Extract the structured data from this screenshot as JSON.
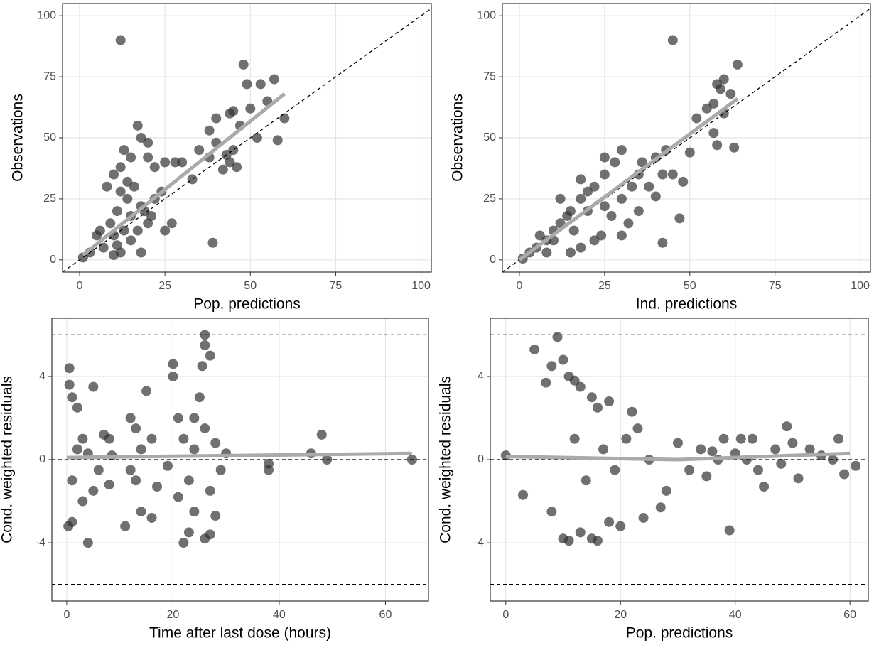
{
  "chart_data": [
    {
      "type": "scatter",
      "xlabel": "Pop. predictions",
      "ylabel": "Observations",
      "xlim": [
        -5,
        103
      ],
      "ylim": [
        -5,
        105
      ],
      "xticks": [
        0,
        25,
        50,
        75,
        100
      ],
      "yticks": [
        0,
        25,
        50,
        75,
        100
      ],
      "grid": true,
      "identity_line": true,
      "series": [
        {
          "color": "#333333",
          "x": [
            12,
            48,
            57,
            53,
            49,
            55,
            50,
            45,
            44,
            40,
            60,
            47,
            38,
            52,
            58,
            45,
            43,
            44,
            46,
            40,
            35,
            38,
            42,
            30,
            33,
            28,
            25,
            17,
            18,
            20,
            13,
            15,
            12,
            10,
            8,
            20,
            22,
            39,
            18,
            5,
            7,
            10,
            12,
            15,
            9,
            11,
            14,
            16,
            18,
            20,
            22,
            24,
            13,
            15,
            17,
            19,
            21,
            10,
            12,
            14,
            25,
            27,
            1,
            3,
            6,
            11
          ],
          "y": [
            90,
            80,
            74,
            72,
            72,
            65,
            62,
            61,
            60,
            58,
            58,
            55,
            53,
            50,
            49,
            45,
            43,
            40,
            38,
            48,
            45,
            42,
            37,
            40,
            33,
            40,
            40,
            55,
            50,
            48,
            45,
            42,
            38,
            35,
            30,
            42,
            38,
            7,
            3,
            10,
            5,
            2,
            3,
            8,
            15,
            20,
            25,
            30,
            22,
            15,
            25,
            28,
            12,
            18,
            12,
            20,
            18,
            10,
            28,
            32,
            12,
            15,
            1,
            3,
            12,
            6
          ]
        }
      ],
      "trend": {
        "color": "#aaaaaa",
        "x": [
          1,
          60
        ],
        "y": [
          2,
          68
        ]
      }
    },
    {
      "type": "scatter",
      "xlabel": "Ind. predictions",
      "ylabel": "Observations",
      "xlim": [
        -5,
        103
      ],
      "ylim": [
        -5,
        105
      ],
      "xticks": [
        0,
        25,
        50,
        75,
        100
      ],
      "yticks": [
        0,
        25,
        50,
        75,
        100
      ],
      "grid": true,
      "identity_line": true,
      "series": [
        {
          "color": "#333333",
          "x": [
            45,
            64,
            60,
            58,
            59,
            62,
            57,
            55,
            60,
            52,
            57,
            58,
            63,
            50,
            48,
            45,
            47,
            42,
            40,
            38,
            35,
            30,
            28,
            25,
            22,
            20,
            18,
            15,
            12,
            10,
            8,
            5,
            3,
            1,
            20,
            25,
            30,
            33,
            27,
            32,
            24,
            18,
            15,
            22,
            36,
            40,
            43,
            35,
            30,
            42,
            12,
            18,
            25,
            14,
            16,
            10,
            6,
            8
          ],
          "y": [
            90,
            80,
            74,
            72,
            70,
            68,
            64,
            62,
            60,
            58,
            52,
            47,
            46,
            44,
            32,
            35,
            17,
            7,
            26,
            30,
            35,
            45,
            40,
            35,
            30,
            28,
            25,
            20,
            15,
            12,
            8,
            5,
            3,
            0.5,
            20,
            22,
            25,
            30,
            18,
            15,
            10,
            5,
            3,
            8,
            40,
            42,
            45,
            20,
            10,
            35,
            25,
            33,
            42,
            18,
            12,
            8,
            10,
            3
          ]
        }
      ],
      "trend": {
        "color": "#aaaaaa",
        "x": [
          0,
          64
        ],
        "y": [
          0,
          66
        ]
      }
    },
    {
      "type": "scatter",
      "xlabel": "Time after last dose (hours)",
      "ylabel": "Cond. weighted residuals",
      "xlim": [
        -2.8,
        68.1
      ],
      "ylim": [
        -6.8,
        6.8
      ],
      "xticks": [
        0,
        20,
        40,
        60
      ],
      "yticks": [
        -4,
        0,
        4
      ],
      "grid": true,
      "hlines": [
        -6,
        0,
        6
      ],
      "series": [
        {
          "color": "#333333",
          "x": [
            0.5,
            0.5,
            1,
            0.3,
            1,
            2,
            3,
            4,
            5,
            5,
            2,
            1,
            3,
            6,
            4,
            7,
            8,
            8,
            8.5,
            11,
            12,
            13,
            14,
            15,
            16,
            14,
            12,
            16,
            17,
            13,
            20,
            20,
            21,
            22,
            23,
            24,
            25,
            26,
            26,
            27,
            25.5,
            24,
            26,
            27,
            28,
            22,
            23,
            24,
            26,
            27,
            28,
            29,
            30,
            38,
            38,
            46,
            48,
            49,
            65,
            19,
            21
          ],
          "y": [
            3.6,
            4.4,
            3,
            -3.2,
            -3,
            2.5,
            -2,
            -4,
            3.5,
            -1.5,
            0.5,
            -1,
            1,
            -0.5,
            0.3,
            1.2,
            1,
            -1.2,
            0.2,
            -3.2,
            2,
            1.5,
            -2.5,
            3.3,
            -2.8,
            0.5,
            -0.5,
            1,
            -1.3,
            -1,
            4.6,
            4,
            2,
            -4,
            -3.5,
            -2.5,
            3,
            6,
            5.5,
            5,
            4.5,
            2,
            -3.8,
            -3.6,
            -2.7,
            1,
            -1,
            0.5,
            1.5,
            -1.5,
            0.8,
            -0.5,
            0.3,
            -0.2,
            -0.5,
            0.3,
            1.2,
            0,
            0,
            -0.3,
            -1.8
          ]
        }
      ],
      "trend": {
        "color": "#aaaaaa",
        "x": [
          0,
          65
        ],
        "y": [
          0.1,
          0.3
        ]
      }
    },
    {
      "type": "scatter",
      "xlabel": "Pop. predictions",
      "ylabel": "Cond. weighted residuals",
      "xlim": [
        -2.7,
        63.2
      ],
      "ylim": [
        -6.8,
        6.8
      ],
      "xticks": [
        0,
        20,
        40,
        60
      ],
      "yticks": [
        -4,
        0,
        4
      ],
      "grid": true,
      "hlines": [
        -6,
        0,
        6
      ],
      "series": [
        {
          "color": "#333333",
          "x": [
            0,
            3,
            5,
            7,
            8,
            9,
            10,
            11,
            12,
            13,
            15,
            16,
            18,
            22,
            23,
            8,
            10,
            11,
            13,
            15,
            16,
            18,
            20,
            27,
            28,
            24,
            12,
            14,
            17,
            19,
            21,
            25,
            30,
            32,
            34,
            35,
            37,
            38,
            39,
            40,
            41,
            43,
            44,
            45,
            47,
            49,
            50,
            51,
            53,
            55,
            57,
            58,
            59,
            61,
            48,
            42,
            36
          ],
          "y": [
            0.2,
            -1.7,
            5.3,
            3.7,
            4.5,
            5.9,
            4.8,
            4,
            3.8,
            3.5,
            3,
            2.5,
            2.8,
            2.3,
            1.5,
            -2.5,
            -3.8,
            -3.9,
            -3.5,
            -3.8,
            -3.9,
            -3,
            -3.2,
            -2.3,
            -1.5,
            -2.8,
            1,
            -1,
            0.5,
            -0.5,
            1,
            0,
            0.8,
            -0.5,
            0.5,
            -0.8,
            0,
            1,
            -3.4,
            0.3,
            1,
            1,
            -0.5,
            -1.3,
            0.5,
            1.6,
            0.8,
            -0.9,
            0.5,
            0.2,
            0,
            1,
            -0.7,
            -0.3,
            -0.2,
            0,
            0.4
          ]
        }
      ],
      "trend": {
        "color": "#aaaaaa",
        "x": [
          0,
          30,
          60
        ],
        "y": [
          0.15,
          0,
          0.3
        ]
      }
    }
  ]
}
